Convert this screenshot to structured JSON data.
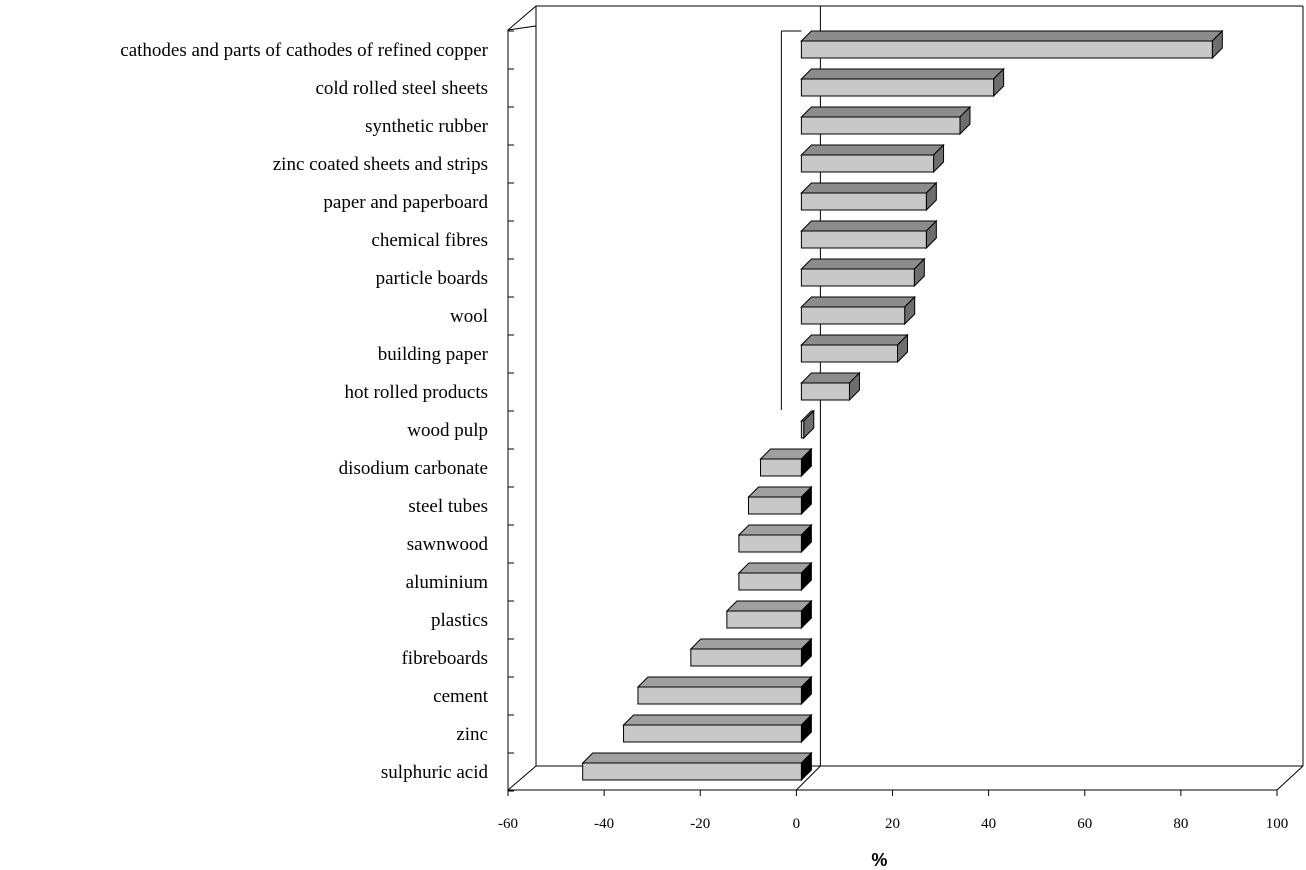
{
  "chart_data": {
    "type": "bar",
    "orientation": "horizontal",
    "three_d": true,
    "categories": [
      "cathodes and parts of cathodes of refined copper",
      "cold rolled steel sheets",
      "synthetic rubber",
      "zinc coated sheets and strips",
      "paper and paperboard",
      "chemical fibres",
      "particle boards",
      "wool",
      "building paper",
      "hot rolled products",
      "wood pulp",
      "disodium carbonate",
      "steel tubes",
      "sawnwood",
      "aluminium",
      "plastics",
      "fibreboards",
      "cement",
      "zinc",
      "sulphuric acid"
    ],
    "values": [
      85.5,
      40,
      33,
      27.5,
      26,
      26,
      23.5,
      21.5,
      20,
      10,
      0.5,
      -8.5,
      -11,
      -13,
      -13,
      -15.5,
      -23,
      -34,
      -37,
      -45.5
    ],
    "xlabel": "%",
    "xlim": [
      -60,
      100
    ],
    "xticks": [
      "-60",
      "-40",
      "-20",
      "0",
      "20",
      "40",
      "60",
      "80",
      "100"
    ],
    "grid": false,
    "legend": "none",
    "colors": {
      "bar_face": "#c8c8c8",
      "bar_top_positive": "#8c8c8c",
      "bar_side_positive": "#6e6e6e",
      "bar_top_negative": "#a0a0a0",
      "bar_side_negative": "#000000"
    }
  }
}
